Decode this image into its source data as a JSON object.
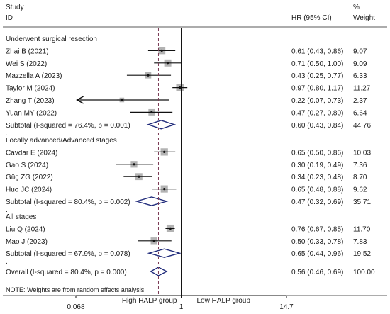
{
  "chart_data": {
    "type": "forest",
    "header": {
      "study": "Study",
      "id": "ID",
      "hr": "HR (95% CI)",
      "pct": "%",
      "weight": "Weight"
    },
    "x_axis": {
      "scale": "log",
      "range": [
        0.068,
        14.7
      ],
      "ticks": [
        {
          "value": 0.068,
          "label": "0.068"
        },
        {
          "value": 1,
          "label": "1"
        },
        {
          "value": 14.7,
          "label": "14.7"
        }
      ],
      "left_label": "High HALP group",
      "right_label": "Low HALP group"
    },
    "overall_reference_hr": 0.56,
    "note": "NOTE: Weights are from random effects analysis",
    "groups": [
      {
        "title": "Underwent surgical resection",
        "studies": [
          {
            "name": "Zhai B (2021)",
            "hr": 0.61,
            "lo": 0.43,
            "hi": 0.86,
            "ci_text": "0.61 (0.43, 0.86)",
            "weight": "9.07"
          },
          {
            "name": "Wei S (2022)",
            "hr": 0.71,
            "lo": 0.5,
            "hi": 1.0,
            "ci_text": "0.71 (0.50, 1.00)",
            "weight": "9.09"
          },
          {
            "name": "Mazzella A (2023)",
            "hr": 0.43,
            "lo": 0.25,
            "hi": 0.77,
            "ci_text": "0.43 (0.25, 0.77)",
            "weight": "6.33"
          },
          {
            "name": "Taylor M (2024)",
            "hr": 0.97,
            "lo": 0.8,
            "hi": 1.17,
            "ci_text": "0.97 (0.80, 1.17)",
            "weight": "11.27"
          },
          {
            "name": "Zhang T (2023)",
            "hr": 0.22,
            "lo": 0.07,
            "hi": 0.73,
            "ci_text": "0.22 (0.07, 0.73)",
            "weight": "2.37"
          },
          {
            "name": "Yuan MY (2022)",
            "hr": 0.47,
            "lo": 0.27,
            "hi": 0.8,
            "ci_text": "0.47 (0.27, 0.80)",
            "weight": "6.64"
          }
        ],
        "subtotal": {
          "label": "Subtotal  (I-squared = 76.4%, p = 0.001)",
          "hr": 0.6,
          "lo": 0.43,
          "hi": 0.84,
          "ci_text": "0.60 (0.43, 0.84)",
          "weight": "44.76"
        }
      },
      {
        "title": "Locally advanced/Advanced stages",
        "studies": [
          {
            "name": "Cavdar E (2024)",
            "hr": 0.65,
            "lo": 0.5,
            "hi": 0.86,
            "ci_text": "0.65 (0.50, 0.86)",
            "weight": "10.03"
          },
          {
            "name": "Gao S (2024)",
            "hr": 0.3,
            "lo": 0.19,
            "hi": 0.49,
            "ci_text": "0.30 (0.19, 0.49)",
            "weight": "7.36"
          },
          {
            "name": "Güç ZG (2022)",
            "hr": 0.34,
            "lo": 0.23,
            "hi": 0.48,
            "ci_text": "0.34 (0.23, 0.48)",
            "weight": "8.70"
          },
          {
            "name": "Huo JC (2024)",
            "hr": 0.65,
            "lo": 0.48,
            "hi": 0.88,
            "ci_text": "0.65 (0.48, 0.88)",
            "weight": "9.62"
          }
        ],
        "subtotal": {
          "label": "Subtotal  (I-squared = 80.4%, p = 0.002)",
          "hr": 0.47,
          "lo": 0.32,
          "hi": 0.69,
          "ci_text": "0.47 (0.32, 0.69)",
          "weight": "35.71"
        }
      },
      {
        "title": "All stages",
        "studies": [
          {
            "name": "Liu Q (2024)",
            "hr": 0.76,
            "lo": 0.67,
            "hi": 0.85,
            "ci_text": "0.76 (0.67, 0.85)",
            "weight": "11.70"
          },
          {
            "name": "Mao J (2023)",
            "hr": 0.5,
            "lo": 0.33,
            "hi": 0.78,
            "ci_text": "0.50 (0.33, 0.78)",
            "weight": "7.83"
          }
        ],
        "subtotal": {
          "label": "Subtotal  (I-squared = 67.9%, p = 0.078)",
          "hr": 0.65,
          "lo": 0.44,
          "hi": 0.96,
          "ci_text": "0.65 (0.44, 0.96)",
          "weight": "19.52"
        }
      }
    ],
    "overall": {
      "label": "Overall  (I-squared = 80.4%, p = 0.000)",
      "hr": 0.56,
      "lo": 0.46,
      "hi": 0.69,
      "ci_text": "0.56 (0.46, 0.69)",
      "weight": "100.00"
    },
    "separator": ".",
    "colors": {
      "diamond": "#1f2a7a",
      "box": "#b3b3b3",
      "reference_dash": "#7a3b55",
      "text": "#1a1a1a"
    }
  }
}
